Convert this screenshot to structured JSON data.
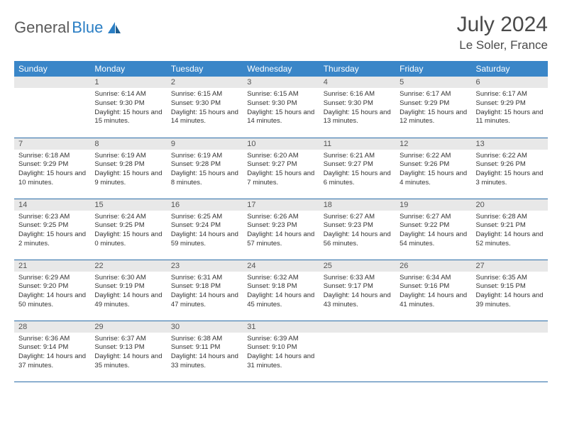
{
  "logo": {
    "text1": "General",
    "text2": "Blue"
  },
  "title": "July 2024",
  "location": "Le Soler, France",
  "colors": {
    "header_bg": "#3a86c8",
    "header_text": "#ffffff",
    "daynum_bg": "#e8e8e8",
    "daynum_text": "#555555",
    "cell_border": "#2a6ca8",
    "body_text": "#333333",
    "title_text": "#4a4a4a",
    "logo_gray": "#5a5a5a",
    "logo_blue": "#2a7ec4"
  },
  "weekdays": [
    "Sunday",
    "Monday",
    "Tuesday",
    "Wednesday",
    "Thursday",
    "Friday",
    "Saturday"
  ],
  "weeks": [
    [
      {
        "n": "",
        "sr": "",
        "ss": "",
        "dl": ""
      },
      {
        "n": "1",
        "sr": "6:14 AM",
        "ss": "9:30 PM",
        "dl": "15 hours and 15 minutes."
      },
      {
        "n": "2",
        "sr": "6:15 AM",
        "ss": "9:30 PM",
        "dl": "15 hours and 14 minutes."
      },
      {
        "n": "3",
        "sr": "6:15 AM",
        "ss": "9:30 PM",
        "dl": "15 hours and 14 minutes."
      },
      {
        "n": "4",
        "sr": "6:16 AM",
        "ss": "9:30 PM",
        "dl": "15 hours and 13 minutes."
      },
      {
        "n": "5",
        "sr": "6:17 AM",
        "ss": "9:29 PM",
        "dl": "15 hours and 12 minutes."
      },
      {
        "n": "6",
        "sr": "6:17 AM",
        "ss": "9:29 PM",
        "dl": "15 hours and 11 minutes."
      }
    ],
    [
      {
        "n": "7",
        "sr": "6:18 AM",
        "ss": "9:29 PM",
        "dl": "15 hours and 10 minutes."
      },
      {
        "n": "8",
        "sr": "6:19 AM",
        "ss": "9:28 PM",
        "dl": "15 hours and 9 minutes."
      },
      {
        "n": "9",
        "sr": "6:19 AM",
        "ss": "9:28 PM",
        "dl": "15 hours and 8 minutes."
      },
      {
        "n": "10",
        "sr": "6:20 AM",
        "ss": "9:27 PM",
        "dl": "15 hours and 7 minutes."
      },
      {
        "n": "11",
        "sr": "6:21 AM",
        "ss": "9:27 PM",
        "dl": "15 hours and 6 minutes."
      },
      {
        "n": "12",
        "sr": "6:22 AM",
        "ss": "9:26 PM",
        "dl": "15 hours and 4 minutes."
      },
      {
        "n": "13",
        "sr": "6:22 AM",
        "ss": "9:26 PM",
        "dl": "15 hours and 3 minutes."
      }
    ],
    [
      {
        "n": "14",
        "sr": "6:23 AM",
        "ss": "9:25 PM",
        "dl": "15 hours and 2 minutes."
      },
      {
        "n": "15",
        "sr": "6:24 AM",
        "ss": "9:25 PM",
        "dl": "15 hours and 0 minutes."
      },
      {
        "n": "16",
        "sr": "6:25 AM",
        "ss": "9:24 PM",
        "dl": "14 hours and 59 minutes."
      },
      {
        "n": "17",
        "sr": "6:26 AM",
        "ss": "9:23 PM",
        "dl": "14 hours and 57 minutes."
      },
      {
        "n": "18",
        "sr": "6:27 AM",
        "ss": "9:23 PM",
        "dl": "14 hours and 56 minutes."
      },
      {
        "n": "19",
        "sr": "6:27 AM",
        "ss": "9:22 PM",
        "dl": "14 hours and 54 minutes."
      },
      {
        "n": "20",
        "sr": "6:28 AM",
        "ss": "9:21 PM",
        "dl": "14 hours and 52 minutes."
      }
    ],
    [
      {
        "n": "21",
        "sr": "6:29 AM",
        "ss": "9:20 PM",
        "dl": "14 hours and 50 minutes."
      },
      {
        "n": "22",
        "sr": "6:30 AM",
        "ss": "9:19 PM",
        "dl": "14 hours and 49 minutes."
      },
      {
        "n": "23",
        "sr": "6:31 AM",
        "ss": "9:18 PM",
        "dl": "14 hours and 47 minutes."
      },
      {
        "n": "24",
        "sr": "6:32 AM",
        "ss": "9:18 PM",
        "dl": "14 hours and 45 minutes."
      },
      {
        "n": "25",
        "sr": "6:33 AM",
        "ss": "9:17 PM",
        "dl": "14 hours and 43 minutes."
      },
      {
        "n": "26",
        "sr": "6:34 AM",
        "ss": "9:16 PM",
        "dl": "14 hours and 41 minutes."
      },
      {
        "n": "27",
        "sr": "6:35 AM",
        "ss": "9:15 PM",
        "dl": "14 hours and 39 minutes."
      }
    ],
    [
      {
        "n": "28",
        "sr": "6:36 AM",
        "ss": "9:14 PM",
        "dl": "14 hours and 37 minutes."
      },
      {
        "n": "29",
        "sr": "6:37 AM",
        "ss": "9:13 PM",
        "dl": "14 hours and 35 minutes."
      },
      {
        "n": "30",
        "sr": "6:38 AM",
        "ss": "9:11 PM",
        "dl": "14 hours and 33 minutes."
      },
      {
        "n": "31",
        "sr": "6:39 AM",
        "ss": "9:10 PM",
        "dl": "14 hours and 31 minutes."
      },
      {
        "n": "",
        "sr": "",
        "ss": "",
        "dl": ""
      },
      {
        "n": "",
        "sr": "",
        "ss": "",
        "dl": ""
      },
      {
        "n": "",
        "sr": "",
        "ss": "",
        "dl": ""
      }
    ]
  ],
  "labels": {
    "sunrise": "Sunrise:",
    "sunset": "Sunset:",
    "daylight": "Daylight:"
  }
}
